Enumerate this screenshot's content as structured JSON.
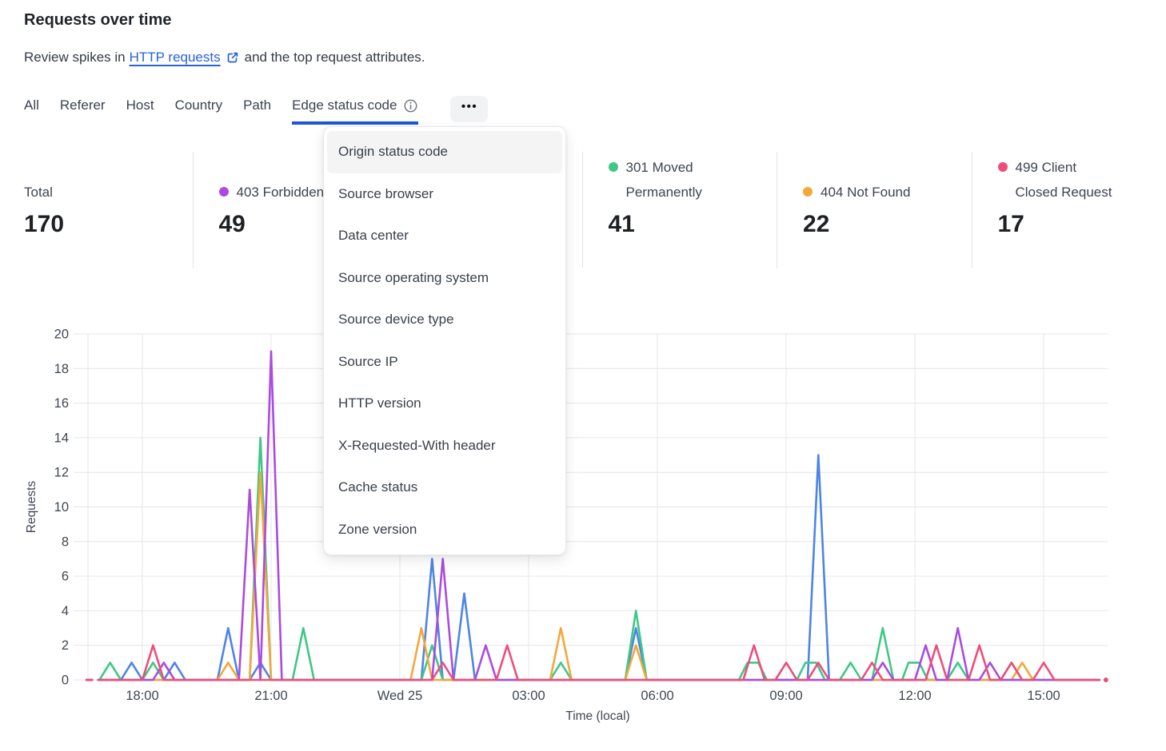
{
  "header": {
    "title": "Requests over time",
    "subtitle_prefix": "Review spikes in",
    "subtitle_link": "HTTP requests",
    "subtitle_suffix": "and the top request attributes.",
    "icons": {
      "external_link": "external-link-icon"
    }
  },
  "tabs": {
    "items": [
      "All",
      "Referer",
      "Host",
      "Country",
      "Path",
      "Edge status code"
    ],
    "active": "Edge status code",
    "accent_color": "#1a56db",
    "icons": {
      "info": "info-icon",
      "more": "ellipsis-icon"
    }
  },
  "menu": {
    "items": [
      "Origin status code",
      "Source browser",
      "Data center",
      "Source operating system",
      "Source device type",
      "Source IP",
      "HTTP version",
      "X-Requested-With header",
      "Cache status",
      "Zone version"
    ],
    "highlighted_index": 0
  },
  "stats": {
    "columns": [
      {
        "label_lines": [
          "Total"
        ],
        "value": "170"
      },
      {
        "dot_color": "#ab4be0",
        "label_lines": [
          "403 Forbidden"
        ],
        "value": "49"
      },
      {
        "hidden": true
      },
      {
        "dot_color": "#3ec886",
        "label_lines": [
          "301 Moved",
          "Permanently"
        ],
        "value": "41"
      },
      {
        "dot_color": "#f4a73a",
        "label_lines": [
          "404 Not Found"
        ],
        "value": "22"
      },
      {
        "dot_color": "#ee4d7a",
        "label_lines": [
          "499 Client",
          "Closed Request"
        ],
        "value": "17"
      }
    ]
  },
  "chart_data": {
    "type": "line",
    "xlabel": "Time (local)",
    "ylabel": "Requests",
    "ylim": [
      0,
      20
    ],
    "y_ticks": [
      0,
      2,
      4,
      6,
      8,
      10,
      12,
      14,
      16,
      18,
      20
    ],
    "x_domain_hours_after_1700": [
      -0.3,
      23.45
    ],
    "x_ticks": [
      {
        "t": 1,
        "label": "18:00"
      },
      {
        "t": 4,
        "label": "21:00"
      },
      {
        "t": 7,
        "label": "Wed 25"
      },
      {
        "t": 10,
        "label": "03:00"
      },
      {
        "t": 13,
        "label": "06:00"
      },
      {
        "t": 16,
        "label": "09:00"
      },
      {
        "t": 19,
        "label": "12:00"
      },
      {
        "t": 22,
        "label": "15:00"
      }
    ],
    "grid": true,
    "legend_position": "top-stats-row",
    "series": [
      {
        "name": "",
        "color": "#4d85e4",
        "points": [
          [
            -0.03,
            0
          ],
          [
            0.5,
            0
          ],
          [
            0.75,
            1
          ],
          [
            1,
            0
          ],
          [
            1.5,
            0
          ],
          [
            1.75,
            1
          ],
          [
            2,
            0
          ],
          [
            2.75,
            0
          ],
          [
            3,
            3
          ],
          [
            3.25,
            0
          ],
          [
            3.5,
            0
          ],
          [
            3.75,
            1
          ],
          [
            4,
            0
          ],
          [
            7.5,
            0
          ],
          [
            7.75,
            7
          ],
          [
            8,
            0
          ],
          [
            8.25,
            0
          ],
          [
            8.5,
            5
          ],
          [
            8.75,
            0
          ],
          [
            12.25,
            0
          ],
          [
            12.5,
            3
          ],
          [
            12.75,
            0
          ],
          [
            16.5,
            0
          ],
          [
            16.75,
            13
          ],
          [
            17,
            0
          ],
          [
            23.3,
            0
          ]
        ]
      },
      {
        "name": "301 Moved Permanently",
        "color": "#3ec886",
        "points": [
          [
            -0.03,
            0
          ],
          [
            0,
            0
          ],
          [
            0.25,
            1
          ],
          [
            0.5,
            0
          ],
          [
            1,
            0
          ],
          [
            1.25,
            1
          ],
          [
            1.5,
            0
          ],
          [
            3.5,
            0
          ],
          [
            3.75,
            14
          ],
          [
            4,
            0
          ],
          [
            4.5,
            0
          ],
          [
            4.75,
            3
          ],
          [
            5,
            0
          ],
          [
            7.5,
            0
          ],
          [
            7.75,
            2
          ],
          [
            8,
            0
          ],
          [
            10.5,
            0
          ],
          [
            10.75,
            1
          ],
          [
            11,
            0
          ],
          [
            12.25,
            0
          ],
          [
            12.5,
            4
          ],
          [
            12.75,
            0
          ],
          [
            14.9,
            0
          ],
          [
            15.1,
            1
          ],
          [
            15.35,
            1
          ],
          [
            15.55,
            0
          ],
          [
            16.25,
            0
          ],
          [
            16.45,
            1
          ],
          [
            16.7,
            1
          ],
          [
            16.9,
            0
          ],
          [
            17.25,
            0
          ],
          [
            17.5,
            1
          ],
          [
            17.75,
            0
          ],
          [
            18,
            0
          ],
          [
            18.25,
            3
          ],
          [
            18.5,
            0
          ],
          [
            18.7,
            0
          ],
          [
            18.85,
            1
          ],
          [
            19.1,
            1
          ],
          [
            19.3,
            0
          ],
          [
            19.75,
            0
          ],
          [
            20,
            1
          ],
          [
            20.25,
            0
          ],
          [
            21,
            0
          ],
          [
            21.25,
            1
          ],
          [
            21.5,
            0
          ],
          [
            23.3,
            0
          ]
        ]
      },
      {
        "name": "404 Not Found",
        "color": "#f4a73a",
        "points": [
          [
            -0.03,
            0
          ],
          [
            2.75,
            0
          ],
          [
            3,
            1
          ],
          [
            3.25,
            0
          ],
          [
            3.5,
            0
          ],
          [
            3.75,
            12
          ],
          [
            4,
            0
          ],
          [
            7.25,
            0
          ],
          [
            7.5,
            3
          ],
          [
            7.75,
            0
          ],
          [
            10.5,
            0
          ],
          [
            10.75,
            3
          ],
          [
            11,
            0
          ],
          [
            12.25,
            0
          ],
          [
            12.5,
            2
          ],
          [
            12.75,
            0
          ],
          [
            21.25,
            0
          ],
          [
            21.5,
            1
          ],
          [
            21.75,
            0
          ],
          [
            23.3,
            0
          ]
        ]
      },
      {
        "name": "403 Forbidden",
        "color": "#ab4be0",
        "points": [
          [
            -0.03,
            0
          ],
          [
            1.25,
            0
          ],
          [
            1.5,
            1
          ],
          [
            1.75,
            0
          ],
          [
            3.25,
            0
          ],
          [
            3.5,
            11
          ],
          [
            3.75,
            0
          ],
          [
            4,
            19
          ],
          [
            4.25,
            0
          ],
          [
            7.75,
            0
          ],
          [
            8,
            7
          ],
          [
            8.25,
            0
          ],
          [
            8.75,
            0
          ],
          [
            9,
            2
          ],
          [
            9.25,
            0
          ],
          [
            18,
            0
          ],
          [
            18.25,
            1
          ],
          [
            18.5,
            0
          ],
          [
            19,
            0
          ],
          [
            19.25,
            2
          ],
          [
            19.5,
            0
          ],
          [
            19.75,
            0
          ],
          [
            20,
            3
          ],
          [
            20.25,
            0
          ],
          [
            20.5,
            0
          ],
          [
            20.75,
            1
          ],
          [
            21,
            0
          ],
          [
            23.3,
            0
          ]
        ]
      },
      {
        "name": "499 Client Closed Request",
        "color": "#ee4d7a",
        "points": [
          [
            -0.03,
            0
          ],
          [
            1,
            0
          ],
          [
            1.25,
            2
          ],
          [
            1.5,
            0
          ],
          [
            7.75,
            0
          ],
          [
            8,
            1
          ],
          [
            8.25,
            0
          ],
          [
            9.25,
            0
          ],
          [
            9.5,
            2
          ],
          [
            9.75,
            0
          ],
          [
            15,
            0
          ],
          [
            15.25,
            2
          ],
          [
            15.5,
            0
          ],
          [
            15.75,
            0
          ],
          [
            16,
            1
          ],
          [
            16.25,
            0
          ],
          [
            16.5,
            0
          ],
          [
            16.75,
            1
          ],
          [
            17,
            0
          ],
          [
            17.75,
            0
          ],
          [
            18,
            1
          ],
          [
            18.25,
            0
          ],
          [
            19.25,
            0
          ],
          [
            19.5,
            2
          ],
          [
            19.75,
            0
          ],
          [
            20.25,
            0
          ],
          [
            20.5,
            2
          ],
          [
            20.75,
            0
          ],
          [
            21,
            0
          ],
          [
            21.25,
            1
          ],
          [
            21.5,
            0
          ],
          [
            21.75,
            0
          ],
          [
            22,
            1
          ],
          [
            22.25,
            0
          ],
          [
            23.3,
            0
          ]
        ],
        "start_dash": [
          [
            -0.3,
            0
          ],
          [
            -0.1,
            0
          ]
        ],
        "end_dot_t": 23.45
      }
    ]
  }
}
